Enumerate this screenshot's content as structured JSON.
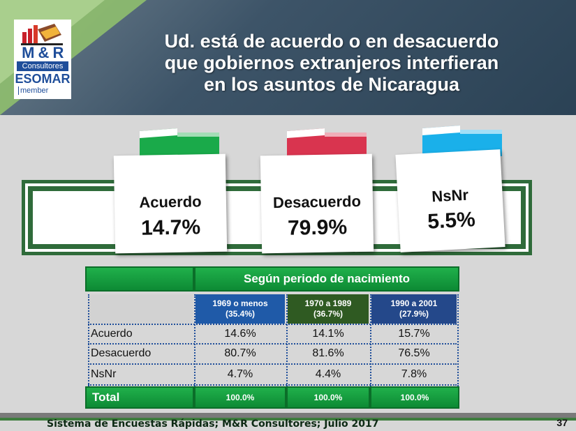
{
  "logo": {
    "brand": "M & R",
    "sub": "Consultores",
    "esomar": "ESOMAR",
    "member": "member"
  },
  "title": {
    "line1": "Ud. está de acuerdo o en desacuerdo",
    "line2": "que gobiernos extranjeros interfieran",
    "line3": "en los asuntos de Nicaragua"
  },
  "cards": [
    {
      "label": "Acuerdo",
      "value": "14.7%",
      "color": "#1aaa4a"
    },
    {
      "label": "Desacuerdo",
      "value": "79.9%",
      "color": "#d9344f"
    },
    {
      "label": "NsNr",
      "value": "5.5%",
      "color": "#1ab0ea"
    }
  ],
  "table": {
    "group_header": "Según periodo de nacimiento",
    "columns": [
      {
        "line1": "1969 o menos",
        "line2": "(35.4%)",
        "color": "#1f5aa8"
      },
      {
        "line1": "1970 a 1989",
        "line2": "(36.7%)",
        "color": "#2f5a22"
      },
      {
        "line1": "1990 a 2001",
        "line2": "(27.9%)",
        "color": "#24488a"
      }
    ],
    "rows": [
      {
        "label": "Acuerdo",
        "values": [
          "14.6%",
          "14.1%",
          "15.7%"
        ]
      },
      {
        "label": "Desacuerdo",
        "values": [
          "80.7%",
          "81.6%",
          "76.5%"
        ]
      },
      {
        "label": "NsNr",
        "values": [
          "4.7%",
          "4.4%",
          "7.8%"
        ]
      }
    ],
    "total": {
      "label": "Total",
      "values": [
        "100.0%",
        "100.0%",
        "100.0%"
      ]
    }
  },
  "footer": {
    "source": "Sistema de Encuestas Rápidas; M&R Consultores; Julio 2017",
    "page": "37"
  }
}
